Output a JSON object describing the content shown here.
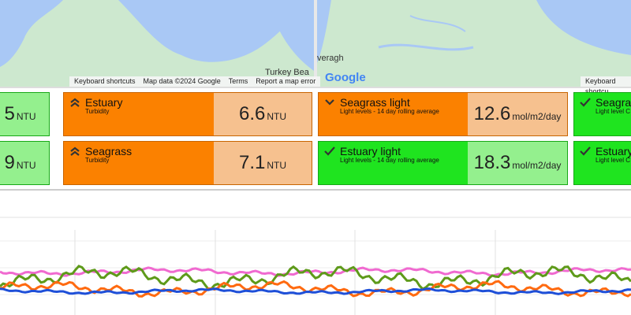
{
  "map_left": {
    "place": "Turkey Bea",
    "attribution": [
      "Keyboard shortcuts",
      "Map data ©2024 Google",
      "Terms",
      "Report a map error"
    ]
  },
  "map_right": {
    "place": "veragh",
    "logo": "Google",
    "attribution": [
      "Keyboard shortcu"
    ]
  },
  "cards": [
    [
      {
        "value": 5,
        "unit": "NTU",
        "status": "good"
      },
      {
        "title": "Estuary",
        "subtitle": "Turbidity",
        "value": 6.6,
        "unit": "NTU",
        "status": "warn"
      },
      {
        "title": "Seagrass light",
        "subtitle": "Light levels - 14 day rolling average",
        "value": 12.6,
        "unit": "mol/m2/day",
        "status": "warn"
      },
      {
        "title": "Seagra",
        "subtitle": "Light level C",
        "status": "good"
      }
    ],
    [
      {
        "value": 9,
        "unit": "NTU",
        "status": "good"
      },
      {
        "title": "Seagrass",
        "subtitle": "Turbidity",
        "value": 7.1,
        "unit": "NTU",
        "status": "warn"
      },
      {
        "title": "Estuary light",
        "subtitle": "Light levels - 14 day rolling average",
        "value": 18.3,
        "unit": "mol/m2/day",
        "status": "good"
      },
      {
        "title": "Estuary",
        "subtitle": "Light level C",
        "status": "good"
      }
    ]
  ]
}
